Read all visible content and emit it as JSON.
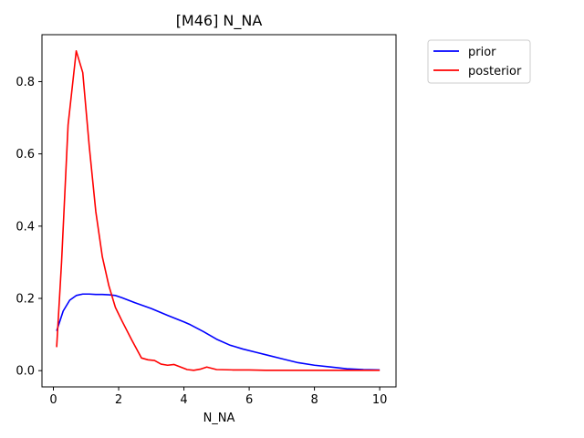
{
  "chart_data": {
    "type": "line",
    "title": "[M46] N_NA",
    "xlabel": "N_NA",
    "ylabel": "",
    "xlim": [
      -0.35,
      10.5
    ],
    "ylim": [
      -0.045,
      0.93
    ],
    "xticks": [
      0,
      2,
      4,
      6,
      8,
      10
    ],
    "xtick_labels": [
      "0",
      "2",
      "4",
      "6",
      "8",
      "10"
    ],
    "yticks": [
      0.0,
      0.2,
      0.4,
      0.6,
      0.8
    ],
    "ytick_labels": [
      "0.0",
      "0.2",
      "0.4",
      "0.6",
      "0.8"
    ],
    "grid": false,
    "legend_position": "outside-top-right",
    "series": [
      {
        "name": "prior",
        "color": "#0000ff",
        "x": [
          0.1,
          0.3,
          0.5,
          0.7,
          0.9,
          1.1,
          1.3,
          1.5,
          1.7,
          1.9,
          2.1,
          2.5,
          3.0,
          3.5,
          4.0,
          4.2,
          4.6,
          5.0,
          5.4,
          5.8,
          6.2,
          6.6,
          7.0,
          7.5,
          8.0,
          8.5,
          9.0,
          9.5,
          10.0
        ],
        "y": [
          0.11,
          0.165,
          0.195,
          0.208,
          0.212,
          0.212,
          0.211,
          0.211,
          0.21,
          0.208,
          0.202,
          0.188,
          0.172,
          0.153,
          0.135,
          0.127,
          0.108,
          0.087,
          0.071,
          0.06,
          0.051,
          0.042,
          0.033,
          0.022,
          0.015,
          0.01,
          0.005,
          0.003,
          0.002
        ]
      },
      {
        "name": "posterior",
        "color": "#ff0000",
        "x": [
          0.1,
          0.25,
          0.45,
          0.7,
          0.9,
          1.1,
          1.3,
          1.5,
          1.7,
          1.9,
          2.1,
          2.4,
          2.7,
          2.9,
          3.1,
          3.3,
          3.5,
          3.7,
          3.9,
          4.1,
          4.3,
          4.5,
          4.7,
          5.0,
          5.5,
          6.0,
          6.5,
          7.0,
          7.5,
          8.0,
          9.0,
          10.0
        ],
        "y": [
          0.065,
          0.3,
          0.68,
          0.885,
          0.825,
          0.62,
          0.44,
          0.315,
          0.235,
          0.175,
          0.138,
          0.085,
          0.035,
          0.03,
          0.028,
          0.018,
          0.015,
          0.017,
          0.01,
          0.003,
          0.001,
          0.004,
          0.01,
          0.003,
          0.002,
          0.002,
          0.001,
          0.001,
          0.001,
          0.001,
          0.001,
          0.001
        ]
      }
    ]
  }
}
